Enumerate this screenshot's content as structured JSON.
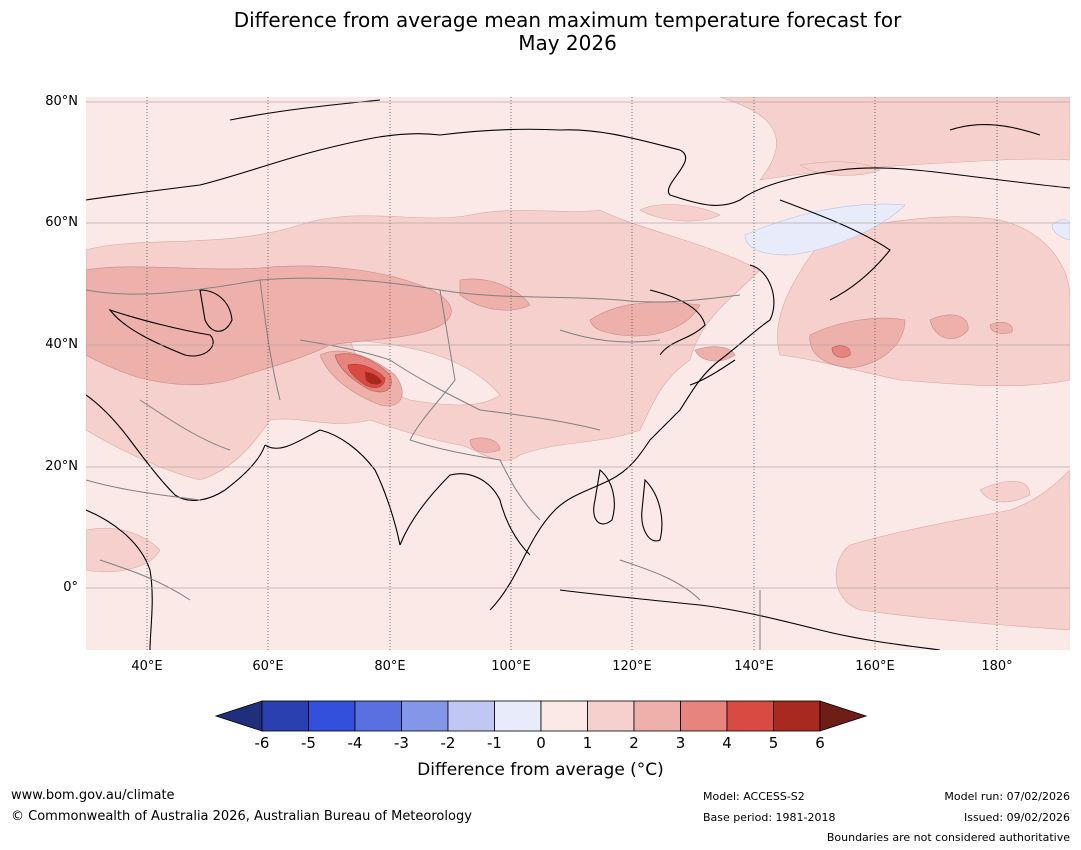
{
  "title": {
    "line1": "Difference from average mean maximum temperature forecast for",
    "line2": "May 2026"
  },
  "latitude_labels": [
    "80°N",
    "60°N",
    "40°N",
    "20°N",
    "0°"
  ],
  "longitude_labels": [
    "40°E",
    "60°E",
    "80°E",
    "100°E",
    "120°E",
    "140°E",
    "160°E",
    "180°"
  ],
  "colorbar": {
    "ticks": [
      "-6",
      "-5",
      "-4",
      "-3",
      "-2",
      "-1",
      "0",
      "1",
      "2",
      "3",
      "4",
      "5",
      "6"
    ],
    "colors": [
      "#1f2f7c",
      "#2a3fb0",
      "#3350dd",
      "#5a6fe0",
      "#8496e8",
      "#bfc7f2",
      "#e8ebfa",
      "#fbe9e7",
      "#f5d0cc",
      "#eeb0ab",
      "#e6847e",
      "#d94a42",
      "#a7291f",
      "#6e1d17"
    ],
    "label": "Difference from average (°C)"
  },
  "footer": {
    "website": "www.bom.gov.au/climate",
    "copyright": "© Commonwealth of Australia 2026, Australian Bureau of Meteorology",
    "model": "Model: ACCESS-S2",
    "base_period": "Base period: 1981-2018",
    "model_run": "Model run: 07/02/2026",
    "issued": "Issued: 09/02/2026",
    "disclaimer": "Boundaries are not considered authoritative"
  }
}
